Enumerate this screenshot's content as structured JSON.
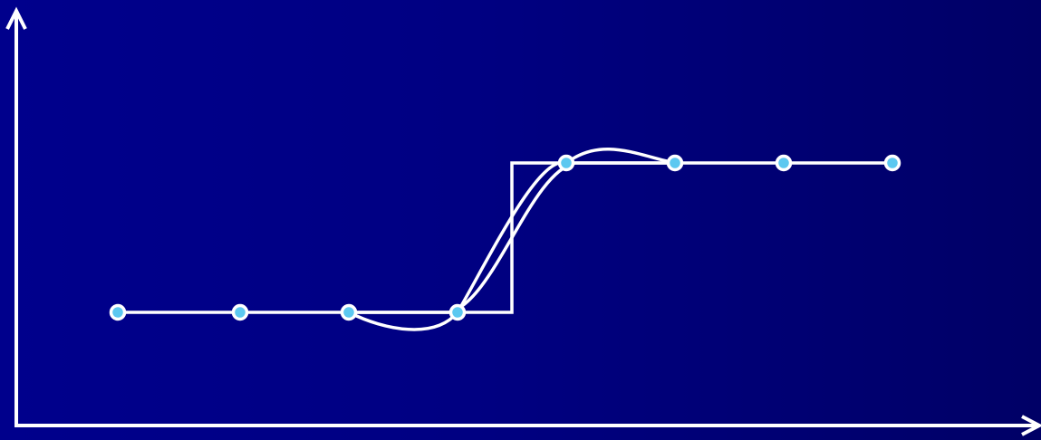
{
  "diagram": {
    "colors": {
      "background_left": "#00008c",
      "background_right": "#000066",
      "stroke": "#ffffff",
      "point_fill": "#5cc8f0"
    },
    "samples": [
      {
        "x": 1,
        "y": 0
      },
      {
        "x": 2,
        "y": 0
      },
      {
        "x": 3,
        "y": 0
      },
      {
        "x": 4,
        "y": 0
      },
      {
        "x": 5,
        "y": 1
      },
      {
        "x": 6,
        "y": 1
      },
      {
        "x": 7,
        "y": 1
      },
      {
        "x": 8,
        "y": 1
      }
    ],
    "step_function": {
      "low": 0,
      "high": 1,
      "step_at": 4.5
    },
    "curves": [
      "smooth-interpolation",
      "oscillating-interpolation"
    ]
  }
}
